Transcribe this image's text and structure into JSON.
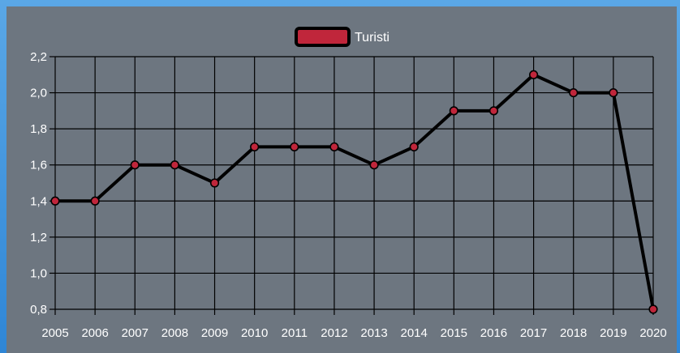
{
  "chart_data": {
    "type": "line",
    "x": [
      "2005",
      "2006",
      "2007",
      "2008",
      "2009",
      "2010",
      "2011",
      "2012",
      "2013",
      "2014",
      "2015",
      "2016",
      "2017",
      "2018",
      "2019",
      "2020"
    ],
    "series": [
      {
        "name": "Turisti",
        "values": [
          1.4,
          1.4,
          1.6,
          1.6,
          1.5,
          1.7,
          1.7,
          1.7,
          1.6,
          1.7,
          1.9,
          1.9,
          2.1,
          2.0,
          2.0,
          0.8
        ]
      }
    ],
    "ylim": [
      0.8,
      2.2
    ],
    "yticks": [
      "0,8",
      "1,0",
      "1,2",
      "1,4",
      "1,6",
      "1,8",
      "2,0",
      "2,2"
    ],
    "legend_position": "top-center",
    "grid": true,
    "colors": {
      "panel_bg": "#6d7680",
      "grid": "#000000",
      "line": "#000000",
      "marker_fill": "#c0263b",
      "legend_fill": "#c0263b",
      "text": "#ffffff"
    }
  }
}
